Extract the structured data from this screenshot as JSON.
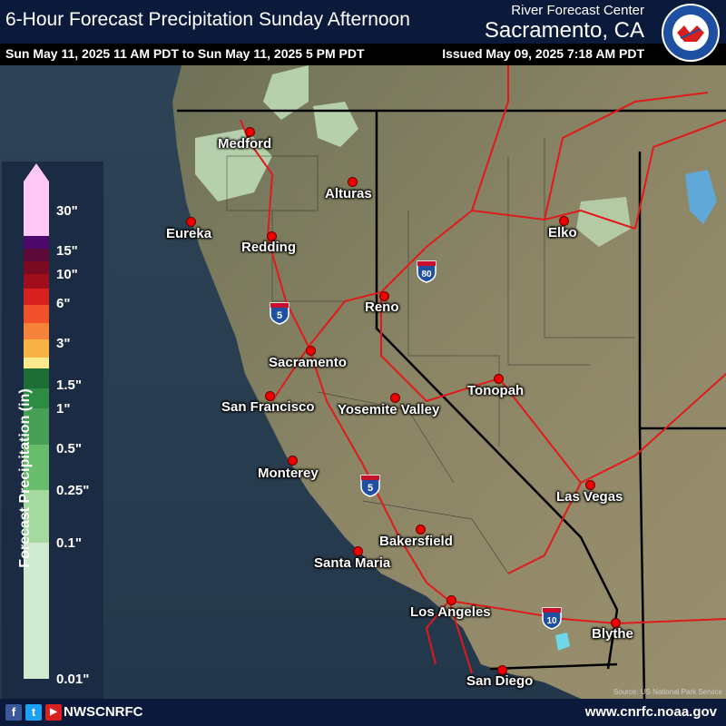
{
  "header": {
    "title": "6-Hour Forecast Precipitation Sunday Afternoon",
    "valid_range": "Sun May 11, 2025 11 AM PDT to Sun May 11, 2025 5 PM PDT",
    "issued": "Issued May 09, 2025 7:18 AM PDT",
    "center": "River Forecast Center",
    "city": "Sacramento, CA",
    "logo_icon": "nws-logo-icon"
  },
  "legend": {
    "title": "Forecast Precipitation (in)",
    "ticks": [
      "30\"",
      "15\"",
      "10\"",
      "6\"",
      "3\"",
      "1.5\"",
      "1\"",
      "0.5\"",
      "0.25\"",
      "0.1\"",
      "0.01\""
    ],
    "colors": [
      "#ffc8f5",
      "#4b0a6a",
      "#5c0a38",
      "#7a0a22",
      "#a00e1e",
      "#d8201e",
      "#f0502a",
      "#f5833a",
      "#f7b346",
      "#fbe98e",
      "#1e6d36",
      "#2e8b44",
      "#47a055",
      "#6bbd6e",
      "#a6d9a0",
      "#cfead0"
    ]
  },
  "cities": [
    {
      "name": "Medford"
    },
    {
      "name": "Alturas"
    },
    {
      "name": "Eureka"
    },
    {
      "name": "Redding"
    },
    {
      "name": "Elko"
    },
    {
      "name": "Reno"
    },
    {
      "name": "Sacramento"
    },
    {
      "name": "San Francisco"
    },
    {
      "name": "Yosemite Valley"
    },
    {
      "name": "Tonopah"
    },
    {
      "name": "Monterey"
    },
    {
      "name": "Las Vegas"
    },
    {
      "name": "Bakersfield"
    },
    {
      "name": "Santa Maria"
    },
    {
      "name": "Los Angeles"
    },
    {
      "name": "Blythe"
    },
    {
      "name": "San Diego"
    }
  ],
  "highways": {
    "i5": "5",
    "i80": "80",
    "i10": "10"
  },
  "source": "Source: US National Park Service",
  "footer": {
    "handle": "NWSCNRFC",
    "website": "www.cnrfc.noaa.gov",
    "facebook_icon": "f",
    "twitter_icon": "t",
    "youtube_icon": "▶"
  },
  "colors": {
    "ocean": "#2a3f52",
    "land": "#8a8a6a",
    "border": "#000000",
    "road": "#e01a1a",
    "header": "#0b1a3a"
  }
}
